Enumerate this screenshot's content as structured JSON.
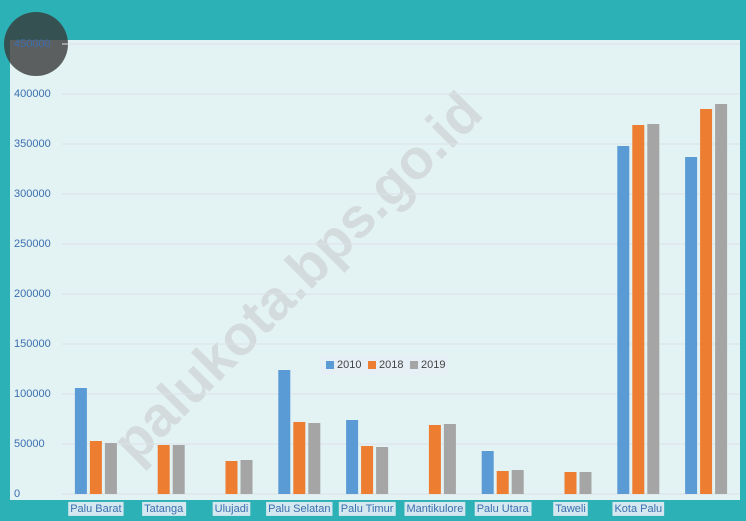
{
  "chart_data": {
    "type": "bar",
    "watermark": "palukota.bps.go.id",
    "categories": [
      "Palu Barat",
      "Tatanga",
      "Ulujadi",
      "Palu Selatan",
      "Palu Timur",
      "Mantikulore",
      "Palu Utara",
      "Taweli",
      "Kota Palu",
      null
    ],
    "series": [
      {
        "name": "2010",
        "color": "#5b9bd5",
        "values": [
          106000,
          null,
          null,
          124000,
          74000,
          null,
          43000,
          null,
          348000,
          337000
        ]
      },
      {
        "name": "2018",
        "color": "#ed7d31",
        "values": [
          53000,
          49000,
          33000,
          72000,
          48000,
          69000,
          23000,
          22000,
          369000,
          385000
        ]
      },
      {
        "name": "2019",
        "color": "#a5a5a5",
        "values": [
          51000,
          49000,
          34000,
          71000,
          47000,
          70000,
          24000,
          22000,
          370000,
          390000
        ]
      }
    ],
    "ylim": [
      0,
      450000
    ],
    "yticks": [
      0,
      50000,
      100000,
      150000,
      200000,
      250000,
      300000,
      350000,
      400000,
      450000
    ],
    "grid": true,
    "legend": "center"
  }
}
